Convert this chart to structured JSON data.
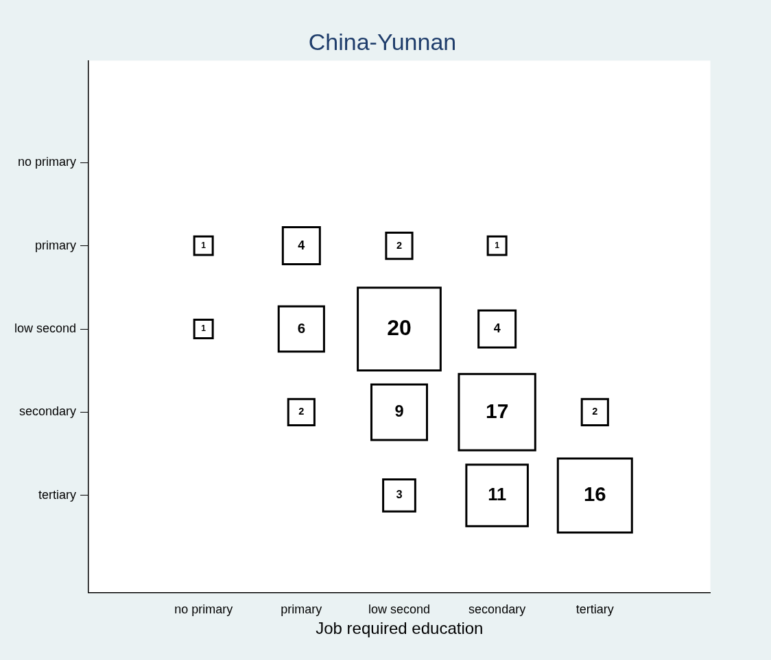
{
  "chart_data": {
    "type": "heatmap",
    "title": "China-Yunnan",
    "xlabel": "Job required education",
    "categories": [
      "no primary",
      "primary",
      "low second",
      "secondary",
      "tertiary"
    ],
    "y_categories": [
      "no primary",
      "primary",
      "low second",
      "secondary",
      "tertiary"
    ],
    "cells": [
      [
        null,
        null,
        null,
        null,
        null
      ],
      [
        1,
        4,
        2,
        1,
        null
      ],
      [
        1,
        6,
        20,
        4,
        null
      ],
      [
        null,
        2,
        9,
        17,
        2
      ],
      [
        null,
        null,
        3,
        11,
        16
      ]
    ],
    "cell_labels": [
      [
        null,
        null,
        null,
        null,
        null
      ],
      [
        "1",
        "4",
        "2",
        "1",
        null
      ],
      [
        "1",
        "6",
        "20",
        "4",
        null
      ],
      [
        null,
        "2",
        "9",
        "17",
        "2"
      ],
      [
        null,
        null,
        "3",
        "11",
        "16"
      ]
    ],
    "grid": false,
    "legend": false
  }
}
